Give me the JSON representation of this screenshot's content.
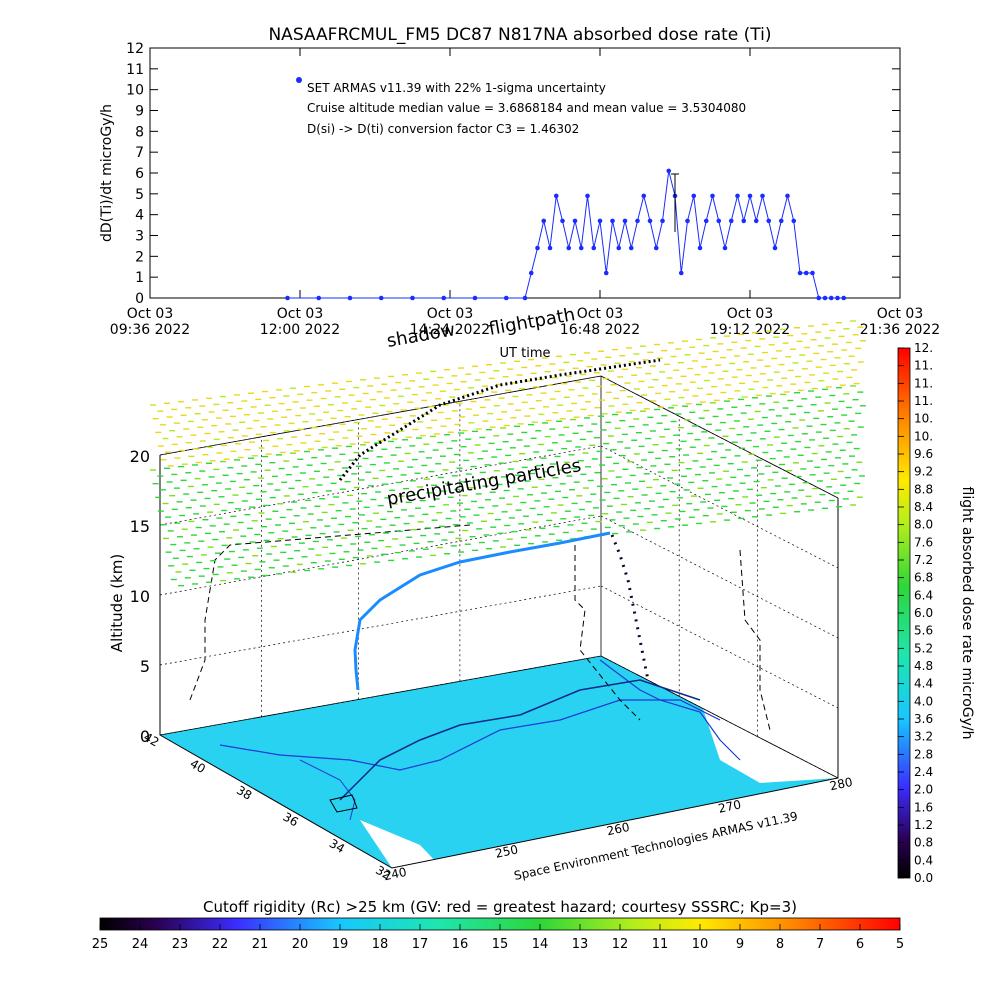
{
  "top_chart": {
    "title": "NASAAFRCMUL_FM5 DC87 N817NA absorbed dose rate (Ti)",
    "ylabel": "dD(Ti)/dt microGy/h",
    "xlabel": "UT time",
    "legend": "SET ARMAS v11.39 with 22% 1-sigma uncertainty",
    "annotation1": "Cruise altitude median value = 3.6868184 and mean value = 3.5304080",
    "annotation2": "D(si) -> D(ti) conversion factor C3 = 1.46302",
    "series_color": "#1a2cff",
    "y_ticks": [
      "0",
      "1",
      "2",
      "3",
      "4",
      "5",
      "6",
      "7",
      "8",
      "9",
      "10",
      "11",
      "12"
    ],
    "x_ticks": [
      {
        "line1": "Oct 03",
        "line2": "09:36 2022"
      },
      {
        "line1": "Oct 03",
        "line2": "12:00 2022"
      },
      {
        "line1": "Oct 03",
        "line2": "14:24 2022"
      },
      {
        "line1": "Oct 03",
        "line2": "16:48 2022"
      },
      {
        "line1": "Oct 03",
        "line2": "19:12 2022"
      },
      {
        "line1": "Oct 03",
        "line2": "21:36 2022"
      }
    ]
  },
  "chart_data": {
    "type": "line",
    "title": "NASAAFRCMUL_FM5 DC87 N817NA absorbed dose rate (Ti)",
    "xlabel": "UT time",
    "ylabel": "dD(Ti)/dt microGy/h",
    "x_unit": "UT hours on Oct 03 2022",
    "xlim": [
      9.6,
      21.6
    ],
    "ylim": [
      0,
      12
    ],
    "series": [
      {
        "name": "SET ARMAS v11.39 with 22% 1-sigma uncertainty",
        "x": [
          11.8,
          12.3,
          12.8,
          13.3,
          13.8,
          14.3,
          14.8,
          15.3,
          15.6,
          15.7,
          15.8,
          15.9,
          16.0,
          16.1,
          16.2,
          16.3,
          16.4,
          16.5,
          16.6,
          16.7,
          16.8,
          16.9,
          17.0,
          17.1,
          17.2,
          17.3,
          17.4,
          17.5,
          17.6,
          17.7,
          17.8,
          17.9,
          18.0,
          18.1,
          18.2,
          18.3,
          18.4,
          18.5,
          18.6,
          18.7,
          18.8,
          18.9,
          19.0,
          19.1,
          19.2,
          19.3,
          19.4,
          19.5,
          19.6,
          19.7,
          19.8,
          19.9,
          20.0,
          20.1,
          20.2,
          20.3,
          20.4,
          20.5,
          20.6,
          20.7
        ],
        "y": [
          0,
          0,
          0,
          0,
          0,
          0,
          0,
          0,
          0,
          1.2,
          2.4,
          3.7,
          2.4,
          4.9,
          3.7,
          2.4,
          3.7,
          2.4,
          4.9,
          2.4,
          3.7,
          1.2,
          3.7,
          2.4,
          3.7,
          2.4,
          3.7,
          4.9,
          3.7,
          2.4,
          3.7,
          6.1,
          4.9,
          1.2,
          3.7,
          4.9,
          2.4,
          3.7,
          4.9,
          3.7,
          2.4,
          3.7,
          4.9,
          3.7,
          4.9,
          3.7,
          4.9,
          3.7,
          2.4,
          3.7,
          4.9,
          3.7,
          1.2,
          1.2,
          1.2,
          0,
          0,
          0,
          0,
          0
        ]
      }
    ]
  },
  "plot3d": {
    "zlabel": "Altitude (km)",
    "z_ticks": [
      "0",
      "5",
      "10",
      "15",
      "20"
    ],
    "lat_ticks": [
      "42",
      "40",
      "38",
      "36",
      "34",
      "32"
    ],
    "lon_ticks": [
      "240",
      "250",
      "260",
      "270",
      "280"
    ],
    "credit": "Space Environment Technologies ARMAS v11.39",
    "label_shadow": "shadow",
    "label_flightpath": "flightpath",
    "label_particles": "precipitating particles"
  },
  "dose_colorbar": {
    "label": "flight absorbed dose rate microGy/h",
    "ticks": [
      "0.0",
      "0.4",
      "0.8",
      "1.2",
      "1.6",
      "2.0",
      "2.4",
      "2.8",
      "3.2",
      "3.6",
      "4.0",
      "4.4",
      "4.8",
      "5.2",
      "5.6",
      "6.0",
      "6.4",
      "6.8",
      "7.2",
      "7.6",
      "8.0",
      "8.4",
      "8.8",
      "9.2",
      "9.6",
      "10.",
      "10.",
      "11.",
      "11.",
      "11.",
      "12."
    ]
  },
  "rigidity_colorbar": {
    "label": "Cutoff rigidity (Rc) >25 km (GV: red = greatest hazard; courtesy SSSRC; Kp=3)",
    "ticks": [
      "25",
      "24",
      "23",
      "22",
      "21",
      "20",
      "19",
      "18",
      "17",
      "16",
      "15",
      "14",
      "13",
      "12",
      "11",
      "10",
      "9",
      "8",
      "7",
      "6",
      "5"
    ]
  }
}
